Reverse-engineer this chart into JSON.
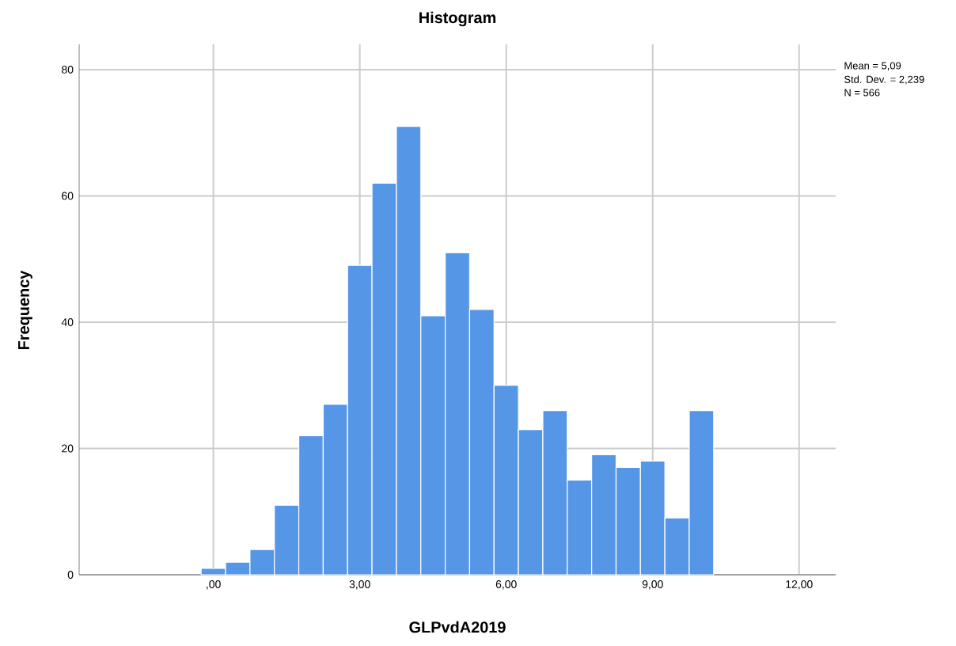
{
  "chart_data": {
    "type": "histogram",
    "title": "Histogram",
    "xlabel": "GLPvdA2019",
    "ylabel": "Frequency",
    "bins": [
      -0.25,
      0.25,
      0.75,
      1.25,
      1.75,
      2.25,
      2.75,
      3.25,
      3.75,
      4.25,
      4.75,
      5.25,
      5.75,
      6.25,
      6.75,
      7.25,
      7.75,
      8.25,
      8.75,
      9.25,
      9.75,
      10.25
    ],
    "values": [
      1,
      2,
      4,
      11,
      22,
      27,
      49,
      62,
      71,
      41,
      51,
      42,
      30,
      23,
      26,
      15,
      19,
      17,
      18,
      9,
      26
    ],
    "color": "#5596e6",
    "xlim": [
      -2.75,
      12.75
    ],
    "ylim": [
      0,
      84
    ],
    "xticks": [
      {
        "value": 0,
        "label": ",00"
      },
      {
        "value": 3,
        "label": "3,00"
      },
      {
        "value": 6,
        "label": "6,00"
      },
      {
        "value": 9,
        "label": "9,00"
      },
      {
        "value": 12,
        "label": "12,00"
      }
    ],
    "yticks": [
      0,
      20,
      40,
      60,
      80
    ],
    "grid": true,
    "annotations": [
      "Mean = 5,09",
      "Std. Dev. = 2,239",
      "N = 566"
    ]
  }
}
